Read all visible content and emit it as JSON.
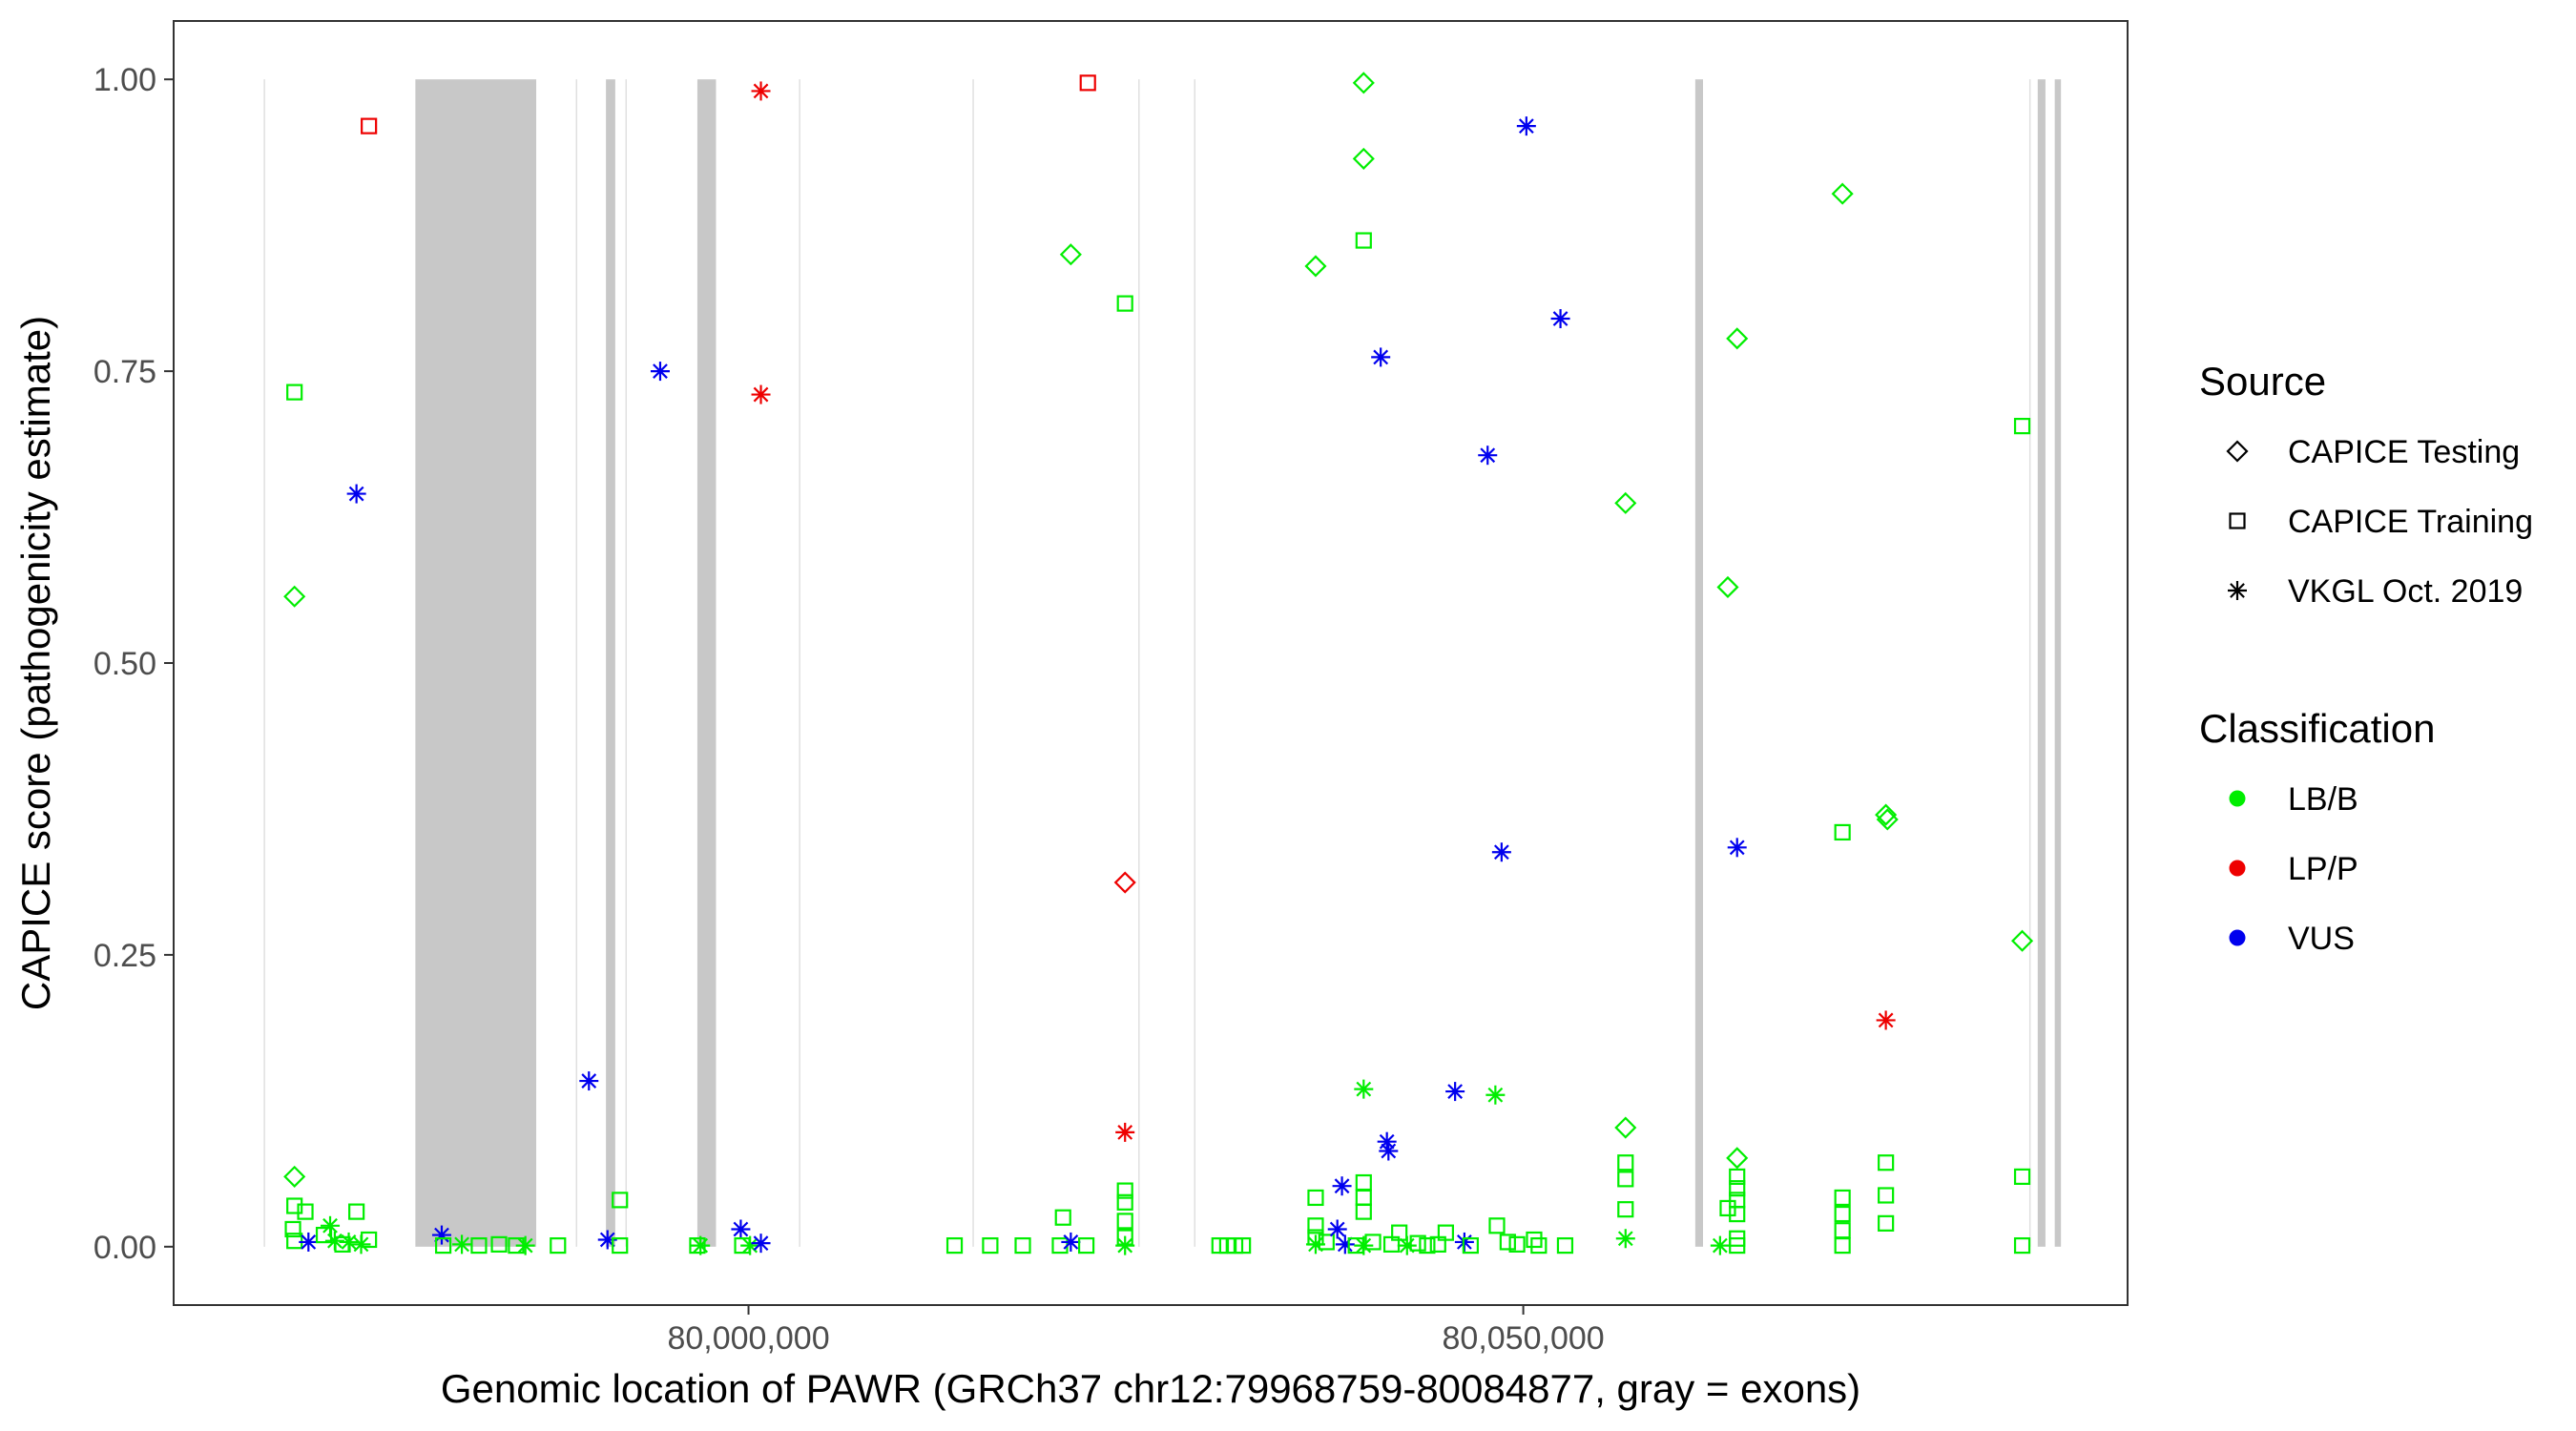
{
  "chart_data": {
    "type": "scatter",
    "title": "",
    "xlabel": "Genomic location of PAWR (GRCh37 chr12:79968759-80084877, gray = exons)",
    "ylabel": "CAPICE score (pathogenicity estimate)",
    "xlim": [
      79962900,
      80089000
    ],
    "ylim": [
      -0.05,
      1.05
    ],
    "x_ticks": [
      80000000,
      80050000
    ],
    "x_tick_labels": [
      "80,000,000",
      "80,050,000"
    ],
    "y_ticks": [
      0,
      0.25,
      0.5,
      0.75,
      1
    ],
    "y_tick_labels": [
      "0.00",
      "0.25",
      "0.50",
      "0.75",
      "1.00"
    ],
    "grid": false,
    "exons": [
      {
        "start": 79968759,
        "end": 79968759
      },
      {
        "start": 79978500,
        "end": 79986300
      },
      {
        "start": 79988900,
        "end": 79988900
      },
      {
        "start": 79990800,
        "end": 79991400
      },
      {
        "start": 79992100,
        "end": 79992100
      },
      {
        "start": 79996700,
        "end": 79997900
      },
      {
        "start": 80003300,
        "end": 80003300
      },
      {
        "start": 80014500,
        "end": 80014500
      },
      {
        "start": 80025200,
        "end": 80025200
      },
      {
        "start": 80028800,
        "end": 80028800
      },
      {
        "start": 80061100,
        "end": 80061600
      },
      {
        "start": 80082700,
        "end": 80082700
      },
      {
        "start": 80083200,
        "end": 80083700
      },
      {
        "start": 80084300,
        "end": 80084700
      }
    ],
    "legend": {
      "placement": "right",
      "source_title": "Source",
      "source_entries": [
        {
          "label": "CAPICE Testing",
          "shape": "diamond"
        },
        {
          "label": "CAPICE Training",
          "shape": "square"
        },
        {
          "label": "VKGL Oct. 2019",
          "shape": "asterisk"
        }
      ],
      "class_title": "Classification",
      "class_entries": [
        {
          "label": "LB/B",
          "color": "#00ee00"
        },
        {
          "label": "LP/P",
          "color": "#ee0000"
        },
        {
          "label": "VUS",
          "color": "#0000ee"
        }
      ]
    },
    "colors": {
      "LB/B": "#00ee00",
      "LP/P": "#ee0000",
      "VUS": "#0000ee",
      "exon": "#c8c8c8",
      "exon_thin": "#e0e0e0"
    },
    "points": [
      {
        "x": 79970700,
        "y": 0.732,
        "source": "CAPICE Training",
        "class": "LB/B"
      },
      {
        "x": 79974700,
        "y": 0.645,
        "source": "VKGL Oct. 2019",
        "class": "VUS"
      },
      {
        "x": 79970700,
        "y": 0.557,
        "source": "CAPICE Testing",
        "class": "LB/B"
      },
      {
        "x": 79975500,
        "y": 0.96,
        "source": "CAPICE Training",
        "class": "LP/P"
      },
      {
        "x": 79970700,
        "y": 0.06,
        "source": "CAPICE Testing",
        "class": "LB/B"
      },
      {
        "x": 79970700,
        "y": 0.035,
        "source": "CAPICE Training",
        "class": "LB/B"
      },
      {
        "x": 79971400,
        "y": 0.03,
        "source": "CAPICE Training",
        "class": "LB/B"
      },
      {
        "x": 79970600,
        "y": 0.015,
        "source": "CAPICE Training",
        "class": "LB/B"
      },
      {
        "x": 79970700,
        "y": 0.005,
        "source": "CAPICE Training",
        "class": "LB/B"
      },
      {
        "x": 79971600,
        "y": 0.004,
        "source": "VKGL Oct. 2019",
        "class": "VUS"
      },
      {
        "x": 79972600,
        "y": 0.01,
        "source": "CAPICE Training",
        "class": "LB/B"
      },
      {
        "x": 79973000,
        "y": 0.018,
        "source": "VKGL Oct. 2019",
        "class": "LB/B"
      },
      {
        "x": 79973300,
        "y": 0.005,
        "source": "VKGL Oct. 2019",
        "class": "LB/B"
      },
      {
        "x": 79973800,
        "y": 0.002,
        "source": "CAPICE Training",
        "class": "LB/B"
      },
      {
        "x": 79974200,
        "y": 0.004,
        "source": "VKGL Oct. 2019",
        "class": "LB/B"
      },
      {
        "x": 79974700,
        "y": 0.03,
        "source": "CAPICE Training",
        "class": "LB/B"
      },
      {
        "x": 79975000,
        "y": 0.002,
        "source": "VKGL Oct. 2019",
        "class": "LB/B"
      },
      {
        "x": 79975500,
        "y": 0.006,
        "source": "CAPICE Training",
        "class": "LB/B"
      },
      {
        "x": 79980200,
        "y": 0.01,
        "source": "VKGL Oct. 2019",
        "class": "VUS"
      },
      {
        "x": 79980300,
        "y": 0.001,
        "source": "CAPICE Training",
        "class": "LB/B"
      },
      {
        "x": 79981500,
        "y": 0.002,
        "source": "VKGL Oct. 2019",
        "class": "LB/B"
      },
      {
        "x": 79982600,
        "y": 0.001,
        "source": "CAPICE Training",
        "class": "LB/B"
      },
      {
        "x": 79983900,
        "y": 0.002,
        "source": "CAPICE Training",
        "class": "LB/B"
      },
      {
        "x": 79985000,
        "y": 0.001,
        "source": "CAPICE Training",
        "class": "LB/B"
      },
      {
        "x": 79985600,
        "y": 0.001,
        "source": "VKGL Oct. 2019",
        "class": "LB/B"
      },
      {
        "x": 79987700,
        "y": 0.001,
        "source": "CAPICE Training",
        "class": "LB/B"
      },
      {
        "x": 79989700,
        "y": 0.142,
        "source": "VKGL Oct. 2019",
        "class": "VUS"
      },
      {
        "x": 79990900,
        "y": 0.006,
        "source": "VKGL Oct. 2019",
        "class": "VUS"
      },
      {
        "x": 79991700,
        "y": 0.04,
        "source": "CAPICE Training",
        "class": "LB/B"
      },
      {
        "x": 79991700,
        "y": 0.001,
        "source": "CAPICE Training",
        "class": "LB/B"
      },
      {
        "x": 79994300,
        "y": 0.75,
        "source": "VKGL Oct. 2019",
        "class": "VUS"
      },
      {
        "x": 79996700,
        "y": 0.001,
        "source": "CAPICE Training",
        "class": "LB/B"
      },
      {
        "x": 79996900,
        "y": 0.001,
        "source": "VKGL Oct. 2019",
        "class": "LB/B"
      },
      {
        "x": 79999500,
        "y": 0.015,
        "source": "VKGL Oct. 2019",
        "class": "VUS"
      },
      {
        "x": 79999600,
        "y": 0.001,
        "source": "CAPICE Training",
        "class": "LB/B"
      },
      {
        "x": 80000100,
        "y": 0.001,
        "source": "VKGL Oct. 2019",
        "class": "LB/B"
      },
      {
        "x": 80000800,
        "y": 0.003,
        "source": "VKGL Oct. 2019",
        "class": "VUS"
      },
      {
        "x": 80000800,
        "y": 0.99,
        "source": "VKGL Oct. 2019",
        "class": "LP/P"
      },
      {
        "x": 80000800,
        "y": 0.73,
        "source": "VKGL Oct. 2019",
        "class": "LP/P"
      },
      {
        "x": 80013300,
        "y": 0.001,
        "source": "CAPICE Training",
        "class": "LB/B"
      },
      {
        "x": 80015600,
        "y": 0.001,
        "source": "CAPICE Training",
        "class": "LB/B"
      },
      {
        "x": 80017700,
        "y": 0.001,
        "source": "CAPICE Training",
        "class": "LB/B"
      },
      {
        "x": 80020100,
        "y": 0.001,
        "source": "CAPICE Training",
        "class": "LB/B"
      },
      {
        "x": 80020300,
        "y": 0.025,
        "source": "CAPICE Training",
        "class": "LB/B"
      },
      {
        "x": 80020800,
        "y": 0.004,
        "source": "VKGL Oct. 2019",
        "class": "VUS"
      },
      {
        "x": 80020800,
        "y": 0.85,
        "source": "CAPICE Testing",
        "class": "LB/B"
      },
      {
        "x": 80021800,
        "y": 0.001,
        "source": "CAPICE Training",
        "class": "LB/B"
      },
      {
        "x": 80021900,
        "y": 0.997,
        "source": "CAPICE Training",
        "class": "LP/P"
      },
      {
        "x": 80024300,
        "y": 0.808,
        "source": "CAPICE Training",
        "class": "LB/B"
      },
      {
        "x": 80024300,
        "y": 0.312,
        "source": "CAPICE Testing",
        "class": "LP/P"
      },
      {
        "x": 80024300,
        "y": 0.098,
        "source": "VKGL Oct. 2019",
        "class": "LP/P"
      },
      {
        "x": 80024300,
        "y": 0.048,
        "source": "CAPICE Training",
        "class": "LB/B"
      },
      {
        "x": 80024300,
        "y": 0.038,
        "source": "CAPICE Training",
        "class": "LB/B"
      },
      {
        "x": 80024300,
        "y": 0.022,
        "source": "CAPICE Training",
        "class": "LB/B"
      },
      {
        "x": 80024300,
        "y": 0.008,
        "source": "CAPICE Training",
        "class": "LB/B"
      },
      {
        "x": 80024300,
        "y": 0.001,
        "source": "VKGL Oct. 2019",
        "class": "LB/B"
      },
      {
        "x": 80030400,
        "y": 0.001,
        "source": "CAPICE Training",
        "class": "LB/B"
      },
      {
        "x": 80030900,
        "y": 0.001,
        "source": "CAPICE Training",
        "class": "LB/B"
      },
      {
        "x": 80031400,
        "y": 0.001,
        "source": "CAPICE Training",
        "class": "LB/B"
      },
      {
        "x": 80031900,
        "y": 0.001,
        "source": "CAPICE Training",
        "class": "LB/B"
      },
      {
        "x": 80036600,
        "y": 0.84,
        "source": "CAPICE Testing",
        "class": "LB/B"
      },
      {
        "x": 80036600,
        "y": 0.042,
        "source": "CAPICE Training",
        "class": "LB/B"
      },
      {
        "x": 80036600,
        "y": 0.018,
        "source": "CAPICE Training",
        "class": "LB/B"
      },
      {
        "x": 80036600,
        "y": 0.008,
        "source": "CAPICE Training",
        "class": "LB/B"
      },
      {
        "x": 80036600,
        "y": 0.002,
        "source": "VKGL Oct. 2019",
        "class": "LB/B"
      },
      {
        "x": 80037300,
        "y": 0.004,
        "source": "CAPICE Training",
        "class": "LB/B"
      },
      {
        "x": 80038000,
        "y": 0.015,
        "source": "VKGL Oct. 2019",
        "class": "VUS"
      },
      {
        "x": 80038300,
        "y": 0.052,
        "source": "VKGL Oct. 2019",
        "class": "VUS"
      },
      {
        "x": 80038500,
        "y": 0.002,
        "source": "VKGL Oct. 2019",
        "class": "VUS"
      },
      {
        "x": 80039200,
        "y": 0.001,
        "source": "CAPICE Training",
        "class": "LB/B"
      },
      {
        "x": 80039700,
        "y": 0.997,
        "source": "CAPICE Testing",
        "class": "LB/B"
      },
      {
        "x": 80039700,
        "y": 0.932,
        "source": "CAPICE Testing",
        "class": "LB/B"
      },
      {
        "x": 80039700,
        "y": 0.862,
        "source": "CAPICE Training",
        "class": "LB/B"
      },
      {
        "x": 80039700,
        "y": 0.135,
        "source": "VKGL Oct. 2019",
        "class": "LB/B"
      },
      {
        "x": 80039700,
        "y": 0.055,
        "source": "CAPICE Training",
        "class": "LB/B"
      },
      {
        "x": 80039700,
        "y": 0.042,
        "source": "CAPICE Training",
        "class": "LB/B"
      },
      {
        "x": 80039700,
        "y": 0.03,
        "source": "CAPICE Training",
        "class": "LB/B"
      },
      {
        "x": 80039700,
        "y": 0.001,
        "source": "VKGL Oct. 2019",
        "class": "LB/B"
      },
      {
        "x": 80040300,
        "y": 0.004,
        "source": "CAPICE Training",
        "class": "LB/B"
      },
      {
        "x": 80040800,
        "y": 0.762,
        "source": "VKGL Oct. 2019",
        "class": "VUS"
      },
      {
        "x": 80041200,
        "y": 0.09,
        "source": "VKGL Oct. 2019",
        "class": "VUS"
      },
      {
        "x": 80041300,
        "y": 0.082,
        "source": "VKGL Oct. 2019",
        "class": "VUS"
      },
      {
        "x": 80041500,
        "y": 0.002,
        "source": "CAPICE Training",
        "class": "LB/B"
      },
      {
        "x": 80042000,
        "y": 0.012,
        "source": "CAPICE Training",
        "class": "LB/B"
      },
      {
        "x": 80042500,
        "y": 0.001,
        "source": "VKGL Oct. 2019",
        "class": "LB/B"
      },
      {
        "x": 80043200,
        "y": 0.003,
        "source": "CAPICE Training",
        "class": "LB/B"
      },
      {
        "x": 80043800,
        "y": 0.001,
        "source": "CAPICE Training",
        "class": "LB/B"
      },
      {
        "x": 80044500,
        "y": 0.002,
        "source": "CAPICE Training",
        "class": "LB/B"
      },
      {
        "x": 80045000,
        "y": 0.012,
        "source": "CAPICE Training",
        "class": "LB/B"
      },
      {
        "x": 80045600,
        "y": 0.133,
        "source": "VKGL Oct. 2019",
        "class": "VUS"
      },
      {
        "x": 80046200,
        "y": 0.004,
        "source": "VKGL Oct. 2019",
        "class": "VUS"
      },
      {
        "x": 80046600,
        "y": 0.001,
        "source": "CAPICE Training",
        "class": "LB/B"
      },
      {
        "x": 80047700,
        "y": 0.678,
        "source": "VKGL Oct. 2019",
        "class": "VUS"
      },
      {
        "x": 80048200,
        "y": 0.13,
        "source": "VKGL Oct. 2019",
        "class": "LB/B"
      },
      {
        "x": 80048300,
        "y": 0.018,
        "source": "CAPICE Training",
        "class": "LB/B"
      },
      {
        "x": 80048600,
        "y": 0.338,
        "source": "VKGL Oct. 2019",
        "class": "VUS"
      },
      {
        "x": 80049000,
        "y": 0.004,
        "source": "CAPICE Training",
        "class": "LB/B"
      },
      {
        "x": 80049600,
        "y": 0.002,
        "source": "CAPICE Training",
        "class": "LB/B"
      },
      {
        "x": 80050200,
        "y": 0.96,
        "source": "VKGL Oct. 2019",
        "class": "VUS"
      },
      {
        "x": 80050700,
        "y": 0.006,
        "source": "CAPICE Training",
        "class": "LB/B"
      },
      {
        "x": 80051000,
        "y": 0.001,
        "source": "CAPICE Training",
        "class": "LB/B"
      },
      {
        "x": 80052400,
        "y": 0.795,
        "source": "VKGL Oct. 2019",
        "class": "VUS"
      },
      {
        "x": 80052700,
        "y": 0.001,
        "source": "CAPICE Training",
        "class": "LB/B"
      },
      {
        "x": 80056600,
        "y": 0.637,
        "source": "CAPICE Testing",
        "class": "LB/B"
      },
      {
        "x": 80056600,
        "y": 0.102,
        "source": "CAPICE Testing",
        "class": "LB/B"
      },
      {
        "x": 80056600,
        "y": 0.072,
        "source": "CAPICE Training",
        "class": "LB/B"
      },
      {
        "x": 80056600,
        "y": 0.058,
        "source": "CAPICE Training",
        "class": "LB/B"
      },
      {
        "x": 80056600,
        "y": 0.032,
        "source": "CAPICE Training",
        "class": "LB/B"
      },
      {
        "x": 80056600,
        "y": 0.007,
        "source": "VKGL Oct. 2019",
        "class": "LB/B"
      },
      {
        "x": 80062700,
        "y": 0.001,
        "source": "VKGL Oct. 2019",
        "class": "LB/B"
      },
      {
        "x": 80063200,
        "y": 0.565,
        "source": "CAPICE Testing",
        "class": "LB/B"
      },
      {
        "x": 80063200,
        "y": 0.033,
        "source": "CAPICE Training",
        "class": "LB/B"
      },
      {
        "x": 80063800,
        "y": 0.778,
        "source": "CAPICE Testing",
        "class": "LB/B"
      },
      {
        "x": 80063800,
        "y": 0.342,
        "source": "VKGL Oct. 2019",
        "class": "VUS"
      },
      {
        "x": 80063800,
        "y": 0.076,
        "source": "CAPICE Testing",
        "class": "LB/B"
      },
      {
        "x": 80063800,
        "y": 0.06,
        "source": "CAPICE Training",
        "class": "LB/B"
      },
      {
        "x": 80063800,
        "y": 0.05,
        "source": "CAPICE Training",
        "class": "LB/B"
      },
      {
        "x": 80063800,
        "y": 0.04,
        "source": "CAPICE Training",
        "class": "LB/B"
      },
      {
        "x": 80063800,
        "y": 0.028,
        "source": "CAPICE Training",
        "class": "LB/B"
      },
      {
        "x": 80063800,
        "y": 0.007,
        "source": "CAPICE Training",
        "class": "LB/B"
      },
      {
        "x": 80063800,
        "y": 0.001,
        "source": "CAPICE Training",
        "class": "LB/B"
      },
      {
        "x": 80070600,
        "y": 0.902,
        "source": "CAPICE Testing",
        "class": "LB/B"
      },
      {
        "x": 80070600,
        "y": 0.355,
        "source": "CAPICE Training",
        "class": "LB/B"
      },
      {
        "x": 80070600,
        "y": 0.042,
        "source": "CAPICE Training",
        "class": "LB/B"
      },
      {
        "x": 80070600,
        "y": 0.028,
        "source": "CAPICE Training",
        "class": "LB/B"
      },
      {
        "x": 80070600,
        "y": 0.014,
        "source": "CAPICE Training",
        "class": "LB/B"
      },
      {
        "x": 80070600,
        "y": 0.001,
        "source": "CAPICE Training",
        "class": "LB/B"
      },
      {
        "x": 80073400,
        "y": 0.37,
        "source": "CAPICE Testing",
        "class": "LB/B"
      },
      {
        "x": 80073500,
        "y": 0.366,
        "source": "CAPICE Testing",
        "class": "LB/B"
      },
      {
        "x": 80073400,
        "y": 0.194,
        "source": "VKGL Oct. 2019",
        "class": "LP/P"
      },
      {
        "x": 80073400,
        "y": 0.072,
        "source": "CAPICE Training",
        "class": "LB/B"
      },
      {
        "x": 80073400,
        "y": 0.044,
        "source": "CAPICE Training",
        "class": "LB/B"
      },
      {
        "x": 80073400,
        "y": 0.02,
        "source": "CAPICE Training",
        "class": "LB/B"
      },
      {
        "x": 80082200,
        "y": 0.703,
        "source": "CAPICE Training",
        "class": "LB/B"
      },
      {
        "x": 80082200,
        "y": 0.262,
        "source": "CAPICE Testing",
        "class": "LB/B"
      },
      {
        "x": 80082200,
        "y": 0.06,
        "source": "CAPICE Training",
        "class": "LB/B"
      },
      {
        "x": 80082200,
        "y": 0.001,
        "source": "CAPICE Training",
        "class": "LB/B"
      }
    ]
  }
}
